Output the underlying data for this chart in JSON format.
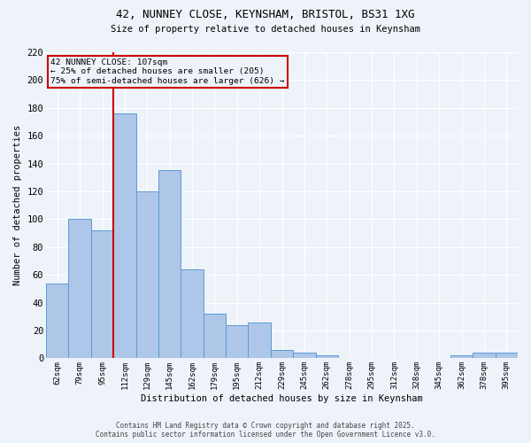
{
  "title_line1": "42, NUNNEY CLOSE, KEYNSHAM, BRISTOL, BS31 1XG",
  "title_line2": "Size of property relative to detached houses in Keynsham",
  "xlabel": "Distribution of detached houses by size in Keynsham",
  "ylabel": "Number of detached properties",
  "categories": [
    "62sqm",
    "79sqm",
    "95sqm",
    "112sqm",
    "129sqm",
    "145sqm",
    "162sqm",
    "179sqm",
    "195sqm",
    "212sqm",
    "229sqm",
    "245sqm",
    "262sqm",
    "278sqm",
    "295sqm",
    "312sqm",
    "328sqm",
    "345sqm",
    "362sqm",
    "378sqm",
    "395sqm"
  ],
  "values": [
    54,
    100,
    92,
    176,
    120,
    135,
    64,
    32,
    24,
    26,
    6,
    4,
    2,
    0,
    0,
    0,
    0,
    0,
    2,
    4,
    4
  ],
  "bar_color": "#aec6e8",
  "bar_edge_color": "#5b9bd5",
  "ylim": [
    0,
    220
  ],
  "yticks": [
    0,
    20,
    40,
    60,
    80,
    100,
    120,
    140,
    160,
    180,
    200,
    220
  ],
  "vline_color": "#cc0000",
  "vline_x": 2.5,
  "annotation_text": "42 NUNNEY CLOSE: 107sqm\n← 25% of detached houses are smaller (205)\n75% of semi-detached houses are larger (626) →",
  "annotation_box_color": "#cc0000",
  "footer_line1": "Contains HM Land Registry data © Crown copyright and database right 2025.",
  "footer_line2": "Contains public sector information licensed under the Open Government Licence v3.0.",
  "background_color": "#eef3fa",
  "grid_color": "#ffffff"
}
